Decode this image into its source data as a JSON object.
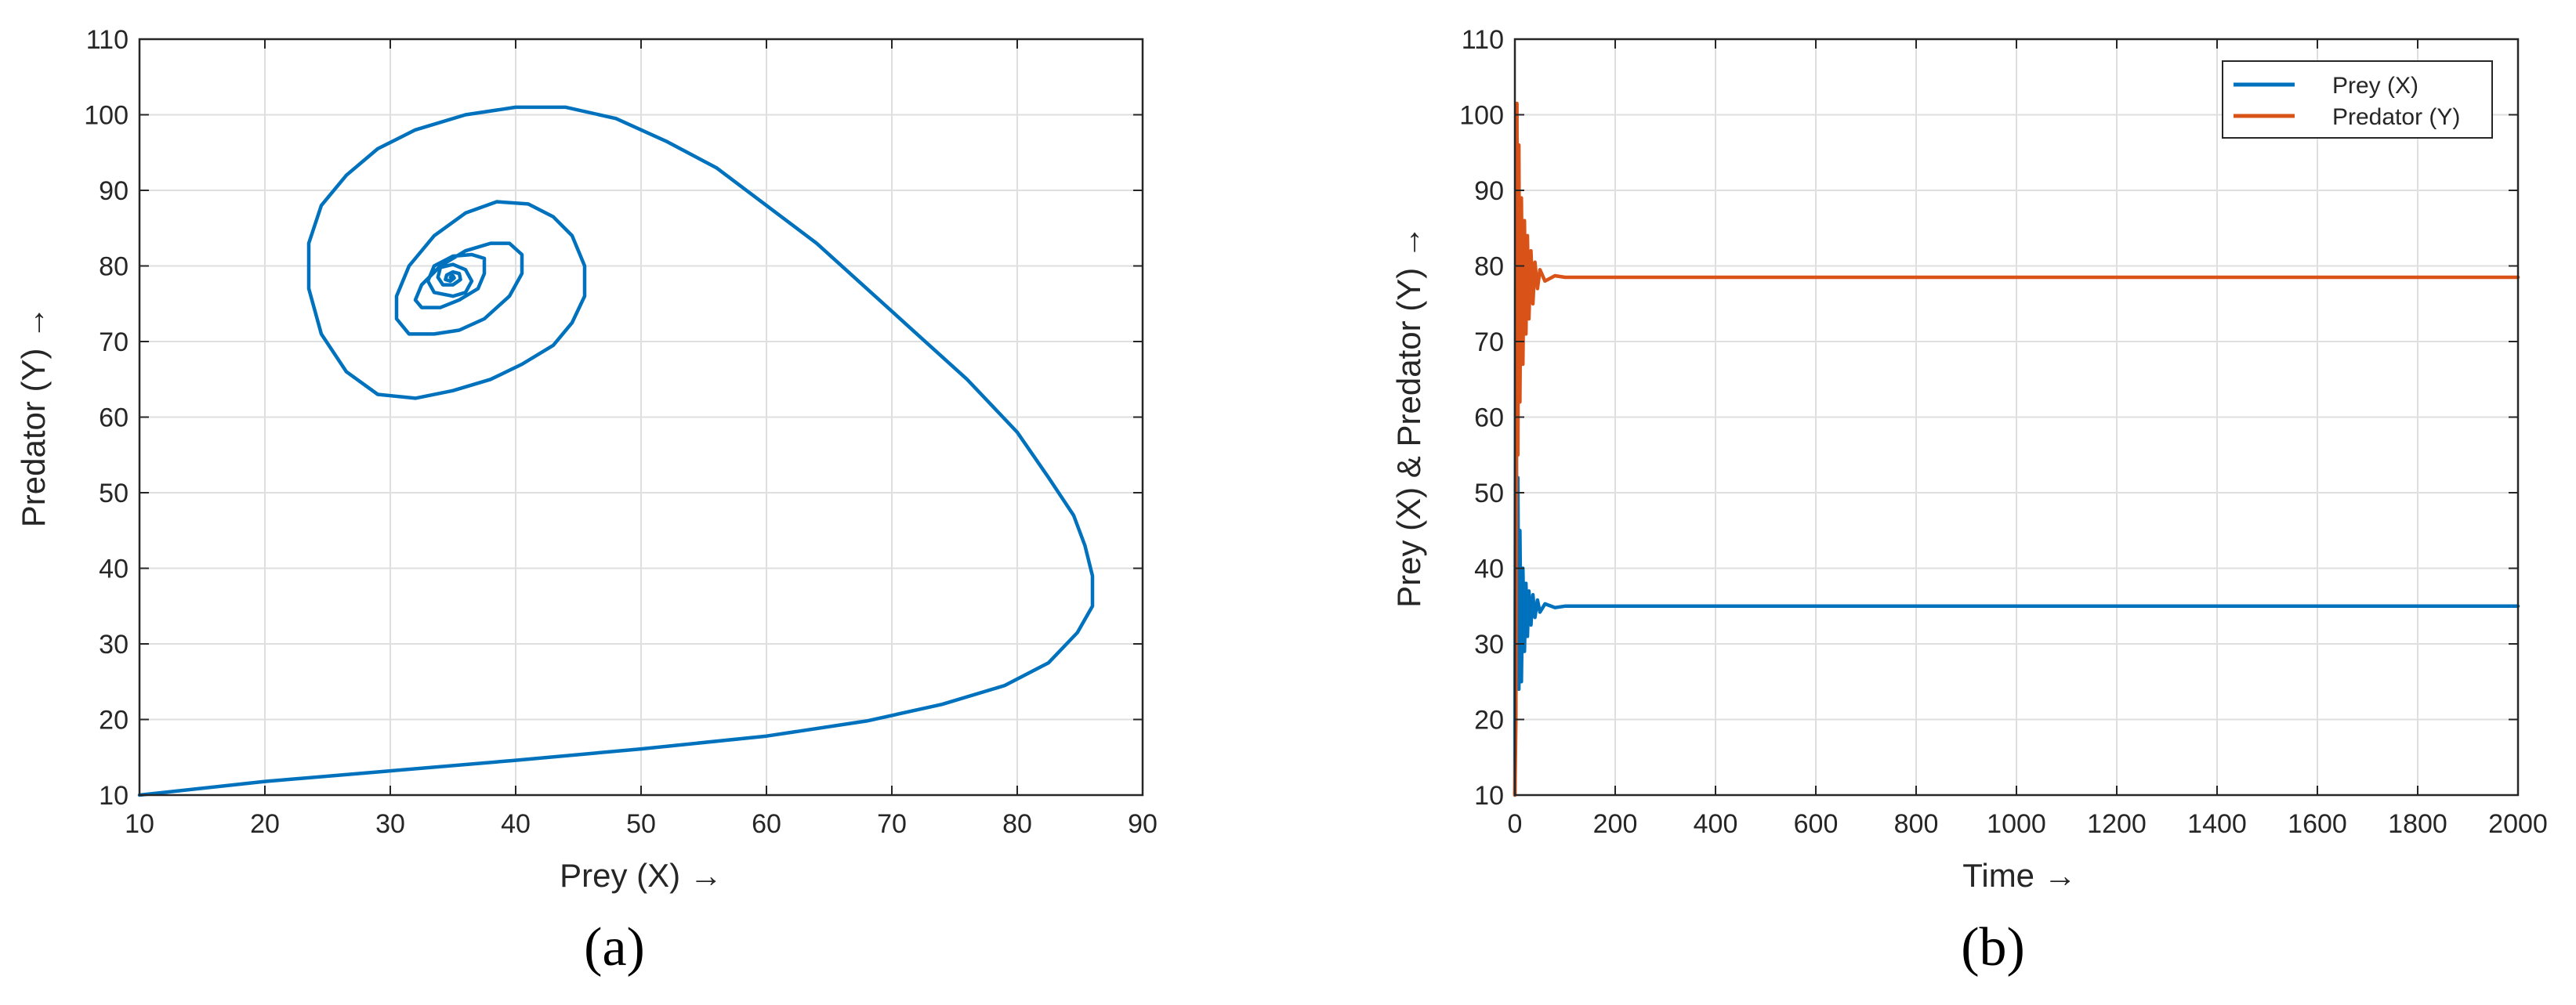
{
  "chart_data": [
    {
      "type": "line",
      "panel_label": "(a)",
      "xlabel": "Prey (X) →",
      "ylabel": "Predator (Y) →",
      "xlim": [
        10,
        90
      ],
      "ylim": [
        10,
        110
      ],
      "xticks": [
        10,
        20,
        30,
        40,
        50,
        60,
        70,
        80,
        90
      ],
      "yticks": [
        10,
        20,
        30,
        40,
        50,
        60,
        70,
        80,
        90,
        100,
        110
      ],
      "grid": true,
      "series": [
        {
          "color": "#0072BD",
          "x": [
            10,
            20,
            30,
            40,
            50,
            60,
            68,
            74,
            79,
            82.5,
            84.8,
            86,
            86,
            85.4,
            84.5,
            82.5,
            80,
            76,
            72,
            68,
            64,
            60,
            56,
            52,
            48,
            44,
            40,
            36,
            32,
            29,
            26.5,
            24.5,
            23.5,
            23.5,
            24.5,
            26.5,
            29,
            32,
            35,
            38,
            40.5,
            43,
            44.5,
            45.5,
            45.5,
            44.5,
            43,
            41,
            38.5,
            36,
            33.5,
            31.5,
            30.5,
            30.5,
            31.5,
            33.5,
            35.5,
            37.5,
            39.5,
            40.5,
            40.5,
            39.5,
            38,
            36,
            34,
            32.5,
            32,
            32.5,
            34,
            35.5,
            37,
            37.5,
            37.5,
            36.5,
            35,
            33.5,
            33,
            33.5,
            35,
            36,
            36.5,
            36,
            35,
            34,
            33.8,
            34.2,
            35,
            35.6,
            35.5,
            35,
            34.5,
            34.4,
            34.8,
            35.1,
            35,
            34.8
          ],
          "y": [
            10,
            11.8,
            13.2,
            14.6,
            16.1,
            17.8,
            19.8,
            22,
            24.5,
            27.5,
            31.5,
            35,
            39,
            43,
            47,
            52,
            58,
            65,
            71,
            77,
            83,
            88,
            93,
            96.5,
            99.5,
            101,
            101,
            100,
            98,
            95.5,
            92,
            88,
            83,
            77,
            71,
            66,
            63,
            62.5,
            63.5,
            65,
            67,
            69.5,
            72.5,
            76,
            80,
            84,
            86.5,
            88.2,
            88.5,
            87,
            84,
            80,
            76,
            73,
            71,
            71,
            71.5,
            73,
            76,
            79,
            81.5,
            83,
            83,
            82,
            80,
            77.5,
            75.5,
            74.5,
            74.5,
            75.5,
            77,
            79,
            81,
            81.5,
            81.3,
            80,
            78,
            76.5,
            76,
            76.5,
            78,
            79.5,
            80.2,
            79.8,
            78.5,
            77.5,
            77.5,
            78.2,
            79,
            79.2,
            78.8,
            78.2,
            78,
            78.4,
            78.7,
            78.5
          ]
        }
      ]
    },
    {
      "type": "line",
      "panel_label": "(b)",
      "xlabel": "Time →",
      "ylabel": "Prey (X) & Predator (Y) →",
      "xlim": [
        0,
        2000
      ],
      "ylim": [
        10,
        110
      ],
      "xticks": [
        0,
        200,
        400,
        600,
        800,
        1000,
        1200,
        1400,
        1600,
        1800,
        2000
      ],
      "yticks": [
        10,
        20,
        30,
        40,
        50,
        60,
        70,
        80,
        90,
        100,
        110
      ],
      "grid": true,
      "legend_position": "top-right",
      "series": [
        {
          "name": "Prey (X)",
          "color": "#0072BD",
          "x": [
            0,
            2,
            4,
            6,
            8,
            10,
            13,
            16,
            19,
            22,
            25,
            28,
            32,
            36,
            40,
            45,
            50,
            60,
            80,
            100,
            2000
          ],
          "y": [
            10,
            86,
            30,
            52,
            24,
            45,
            25,
            40,
            29,
            38,
            31,
            37,
            32.5,
            36.5,
            33.5,
            35.8,
            34.2,
            35.3,
            34.8,
            35,
            35
          ]
        },
        {
          "name": "Predator (Y)",
          "color": "#D95319",
          "x": [
            0,
            2,
            4,
            6,
            8,
            10,
            13,
            16,
            19,
            22,
            25,
            28,
            32,
            36,
            40,
            45,
            50,
            60,
            80,
            100,
            2000
          ],
          "y": [
            10,
            20,
            101.5,
            55,
            96,
            62,
            89,
            67,
            86,
            71,
            84,
            73,
            82,
            75,
            80.5,
            77,
            79.5,
            78,
            78.7,
            78.5,
            78.5
          ]
        }
      ]
    }
  ]
}
